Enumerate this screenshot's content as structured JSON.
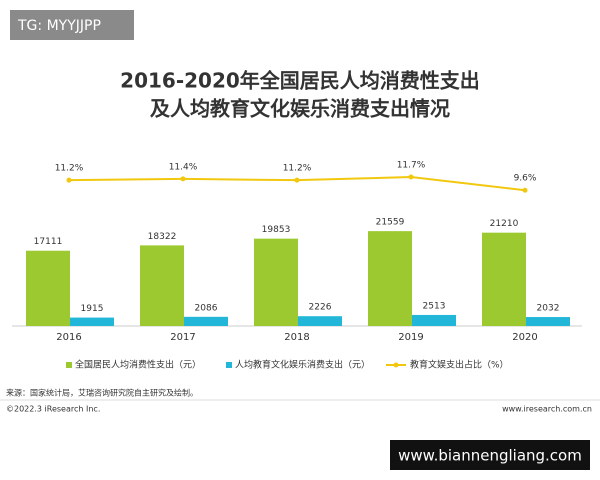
{
  "overlay": {
    "top_left": "TG: MYYJJPP",
    "bottom_right": "www.biannengliang.com"
  },
  "chart_data": {
    "type": "bar",
    "title": "2016-2020年全国居民人均消费性支出",
    "subtitle": "及人均教育文化娱乐消费支出情况",
    "categories": [
      "2016",
      "2017",
      "2018",
      "2019",
      "2020"
    ],
    "ylim": [
      0,
      40000
    ],
    "y2lim": [
      -12,
      16
    ],
    "series": [
      {
        "name": "全国居民人均消费性支出（元）",
        "color": "#9cc92f",
        "values": [
          17111,
          18322,
          19853,
          21559,
          21210
        ]
      },
      {
        "name": "人均教育文化娱乐消费支出（元）",
        "color": "#22b7d9",
        "values": [
          1915,
          2086,
          2226,
          2513,
          2032
        ]
      },
      {
        "name": "教育文娱支出占比（%）",
        "color": "#f2c80f",
        "type": "line",
        "axis": "y2",
        "values": [
          11.2,
          11.4,
          11.2,
          11.7,
          9.6
        ],
        "value_labels": [
          "11.2%",
          "11.4%",
          "11.2%",
          "11.7%",
          "9.6%"
        ]
      }
    ],
    "source": "来源：国家统计局，艾瑞咨询研究院自主研究及绘制。",
    "copyright": "©2022.3 iResearch Inc.",
    "website": "www.iresearch.com.cn"
  }
}
